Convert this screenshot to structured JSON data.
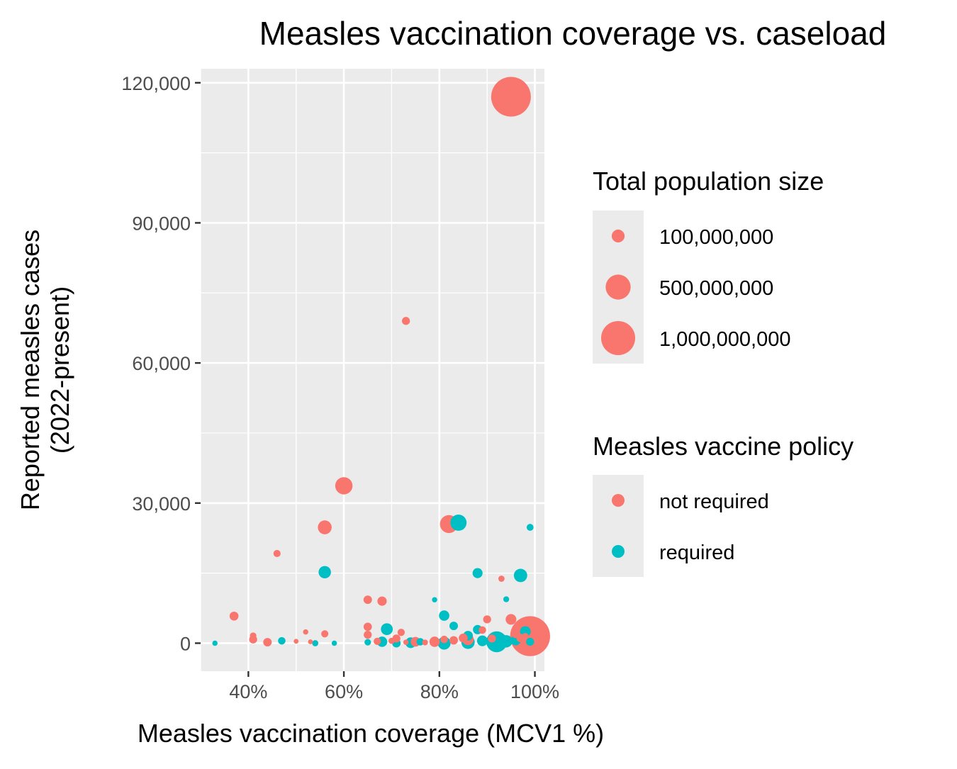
{
  "chart_data": {
    "type": "scatter",
    "title": "Measles vaccination coverage vs. caseload",
    "xlabel": "Measles vaccination coverage (MCV1 %)",
    "ylabel_lines": [
      "Reported measles cases",
      "(2022-present)"
    ],
    "xlim": [
      30,
      102
    ],
    "ylim": [
      -6000,
      123000
    ],
    "x_ticks": [
      40,
      60,
      80,
      100
    ],
    "x_tick_labels": [
      "40%",
      "60%",
      "80%",
      "100%"
    ],
    "y_ticks": [
      0,
      30000,
      60000,
      90000,
      120000
    ],
    "y_tick_labels": [
      "0",
      "30,000",
      "60,000",
      "90,000",
      "120,000"
    ],
    "grid": true,
    "legend_position": "right",
    "colors": {
      "not required": "#F8766D",
      "required": "#00BFC4",
      "panel": "#EBEBEB",
      "grid": "#FFFFFF",
      "axis_text": "#4D4D4D"
    },
    "size_legend": {
      "title": "Total population size",
      "values": [
        100000000,
        500000000,
        1000000000
      ],
      "labels": [
        "100,000,000",
        "500,000,000",
        "1,000,000,000"
      ]
    },
    "color_legend": {
      "title": "Measles vaccine policy",
      "labels": [
        "not required",
        "required"
      ]
    },
    "series": [
      {
        "name": "not required",
        "points": [
          {
            "x": 95,
            "y": 117000,
            "pop": 1400000000
          },
          {
            "x": 99,
            "y": 1500,
            "pop": 1420000000
          },
          {
            "x": 73,
            "y": 69000,
            "pop": 25000000
          },
          {
            "x": 60,
            "y": 33700,
            "pop": 210000000
          },
          {
            "x": 56,
            "y": 24800,
            "pop": 120000000
          },
          {
            "x": 82,
            "y": 25500,
            "pop": 230000000
          },
          {
            "x": 46,
            "y": 19200,
            "pop": 17000000
          },
          {
            "x": 93,
            "y": 13800,
            "pop": 10000000
          },
          {
            "x": 65,
            "y": 9300,
            "pop": 30000000
          },
          {
            "x": 68,
            "y": 9000,
            "pop": 40000000
          },
          {
            "x": 37,
            "y": 5800,
            "pop": 35000000
          },
          {
            "x": 90,
            "y": 5100,
            "pop": 25000000
          },
          {
            "x": 95,
            "y": 5100,
            "pop": 60000000
          },
          {
            "x": 65,
            "y": 3500,
            "pop": 28000000
          },
          {
            "x": 52,
            "y": 2400,
            "pop": 5000000
          },
          {
            "x": 56,
            "y": 2000,
            "pop": 17000000
          },
          {
            "x": 65,
            "y": 1800,
            "pop": 25000000
          },
          {
            "x": 72,
            "y": 2300,
            "pop": 18000000
          },
          {
            "x": 41,
            "y": 1600,
            "pop": 12000000
          },
          {
            "x": 41,
            "y": 800,
            "pop": 25000000
          },
          {
            "x": 44,
            "y": 200,
            "pop": 30000000
          },
          {
            "x": 50,
            "y": 400,
            "pop": 3000000
          },
          {
            "x": 53,
            "y": 300,
            "pop": 3000000
          },
          {
            "x": 67,
            "y": 400,
            "pop": 18000000
          },
          {
            "x": 70,
            "y": 500,
            "pop": 10000000
          },
          {
            "x": 71,
            "y": 1000,
            "pop": 25000000
          },
          {
            "x": 75,
            "y": 300,
            "pop": 45000000
          },
          {
            "x": 79,
            "y": 300,
            "pop": 55000000
          },
          {
            "x": 81,
            "y": 800,
            "pop": 20000000
          },
          {
            "x": 83,
            "y": 600,
            "pop": 30000000
          },
          {
            "x": 85,
            "y": 1100,
            "pop": 35000000
          },
          {
            "x": 86,
            "y": 800,
            "pop": 70000000
          },
          {
            "x": 89,
            "y": 2800,
            "pop": 20000000
          },
          {
            "x": 91,
            "y": 1000,
            "pop": 25000000
          },
          {
            "x": 96,
            "y": 2000,
            "pop": 30000000
          },
          {
            "x": 97,
            "y": 1100,
            "pop": 28000000
          },
          {
            "x": 98,
            "y": 1500,
            "pop": 12000000
          },
          {
            "x": 73,
            "y": 200,
            "pop": 5000000
          },
          {
            "x": 77,
            "y": 150,
            "pop": 8000000
          }
        ]
      },
      {
        "name": "required",
        "points": [
          {
            "x": 84,
            "y": 25800,
            "pop": 180000000
          },
          {
            "x": 99,
            "y": 24800,
            "pop": 15000000
          },
          {
            "x": 56,
            "y": 15200,
            "pop": 90000000
          },
          {
            "x": 88,
            "y": 15000,
            "pop": 50000000
          },
          {
            "x": 97,
            "y": 14500,
            "pop": 110000000
          },
          {
            "x": 79,
            "y": 9300,
            "pop": 5000000
          },
          {
            "x": 94,
            "y": 9400,
            "pop": 8000000
          },
          {
            "x": 81,
            "y": 5900,
            "pop": 55000000
          },
          {
            "x": 83,
            "y": 3700,
            "pop": 30000000
          },
          {
            "x": 69,
            "y": 3000,
            "pop": 80000000
          },
          {
            "x": 88,
            "y": 2900,
            "pop": 40000000
          },
          {
            "x": 98,
            "y": 2500,
            "pop": 60000000
          },
          {
            "x": 86,
            "y": 1600,
            "pop": 45000000
          },
          {
            "x": 33,
            "y": 0,
            "pop": 5000000
          },
          {
            "x": 47,
            "y": 500,
            "pop": 20000000
          },
          {
            "x": 54,
            "y": 0,
            "pop": 10000000
          },
          {
            "x": 58,
            "y": 0,
            "pop": 5000000
          },
          {
            "x": 65,
            "y": 200,
            "pop": 12000000
          },
          {
            "x": 68,
            "y": 300,
            "pop": 55000000
          },
          {
            "x": 71,
            "y": 0,
            "pop": 30000000
          },
          {
            "x": 74,
            "y": 100,
            "pop": 60000000
          },
          {
            "x": 76,
            "y": 300,
            "pop": 20000000
          },
          {
            "x": 81,
            "y": 0,
            "pop": 100000000
          },
          {
            "x": 86,
            "y": 200,
            "pop": 110000000
          },
          {
            "x": 89,
            "y": 500,
            "pop": 60000000
          },
          {
            "x": 92,
            "y": 300,
            "pop": 330000000
          },
          {
            "x": 94,
            "y": 400,
            "pop": 90000000
          },
          {
            "x": 96,
            "y": 600,
            "pop": 50000000
          },
          {
            "x": 99,
            "y": 300,
            "pop": 25000000
          }
        ]
      }
    ]
  }
}
